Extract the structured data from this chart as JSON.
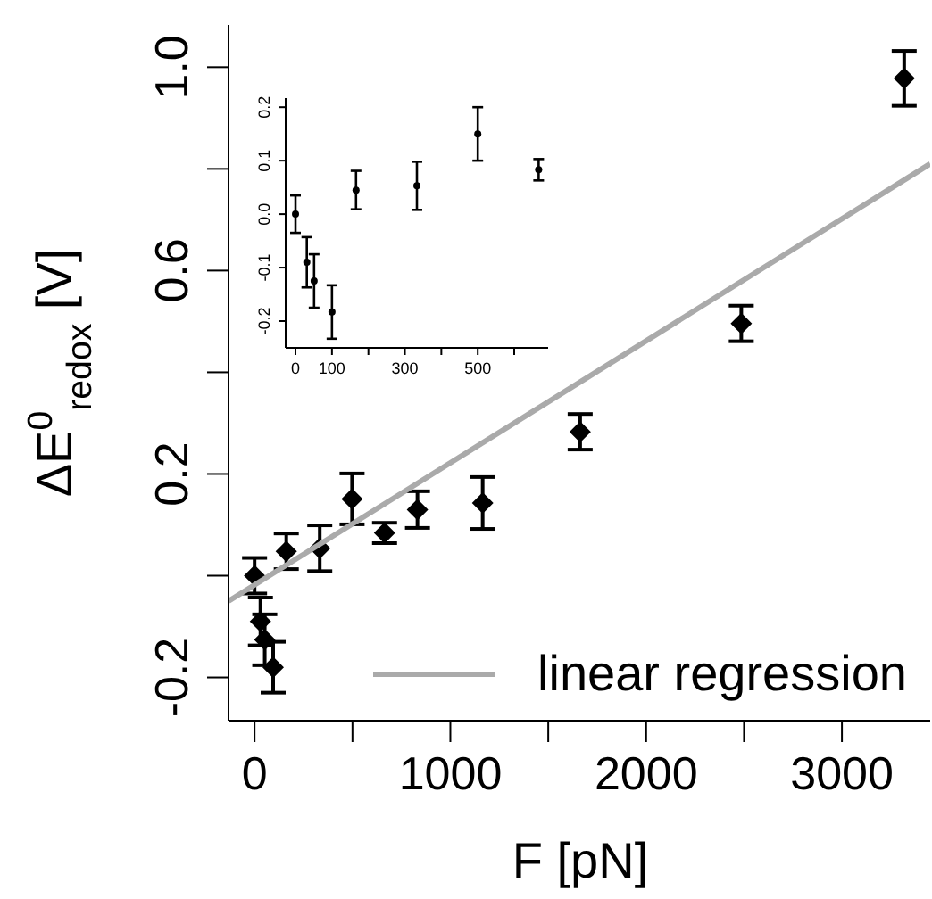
{
  "chart_data": [
    {
      "type": "scatter",
      "xlabel": "F [pN]",
      "ylabel": "ΔE$^{0}$$_{redox}$ [V]",
      "legend": "bottom right",
      "grid": false,
      "xlim": [
        -133,
        3451
      ],
      "ylim": [
        -0.285,
        1.083
      ],
      "xticks": [
        0,
        {
          "value": 500,
          "label": null
        },
        1000,
        {
          "value": 1500,
          "label": null
        },
        2000,
        {
          "value": 2500,
          "label": null
        },
        3000
      ],
      "yticks": [
        -0.2,
        {
          "value": 0,
          "label": null
        },
        0.2,
        {
          "value": 0.4,
          "label": null
        },
        0.6,
        {
          "value": 0.8,
          "label": null
        },
        {
          "value": 1,
          "label": "1.0"
        }
      ],
      "series": [
        {
          "type": "scatter",
          "color": "#000000",
          "marker": "diamond",
          "x": [
            0,
            30,
            52,
            95,
            162,
            333,
            498,
            664,
            832,
            1165,
            1663,
            2486,
            3318
          ],
          "values": [
            0.0,
            -0.09,
            -0.126,
            -0.18,
            0.048,
            0.054,
            0.151,
            0.084,
            0.13,
            0.143,
            0.283,
            0.496,
            0.978
          ],
          "errors": [
            0.035,
            0.047,
            0.05,
            0.05,
            0.035,
            0.045,
            0.05,
            0.02,
            0.036,
            0.051,
            0.035,
            0.035,
            0.054
          ]
        },
        {
          "type": "line",
          "name": "linear regression",
          "color": "#aaaaaa",
          "marker": "none",
          "x": [
            -133,
            3451
          ],
          "values": [
            -0.05,
            0.81
          ]
        }
      ]
    },
    {
      "type": "scatter",
      "grid": false,
      "legend": false,
      "xlim": [
        -27,
        693
      ],
      "ylim": [
        -0.25,
        0.217
      ],
      "xticks": [
        0,
        100,
        {
          "value": 200,
          "label": null
        },
        300,
        {
          "value": 400,
          "label": null
        },
        500,
        {
          "value": 600,
          "label": null
        }
      ],
      "yticks": [
        -0.2,
        -0.1,
        {
          "value": 0,
          "label": "0.0"
        },
        0.1,
        0.2
      ],
      "series": [
        {
          "type": "scatter",
          "color": "#000000",
          "marker": "circle",
          "x": [
            0,
            31,
            51,
            100,
            166,
            333,
            500,
            667
          ],
          "values": [
            0.0,
            -0.09,
            -0.125,
            -0.183,
            0.045,
            0.053,
            0.15,
            0.083
          ],
          "errors": [
            0.035,
            0.047,
            0.05,
            0.05,
            0.036,
            0.045,
            0.05,
            0.02
          ]
        }
      ]
    }
  ]
}
